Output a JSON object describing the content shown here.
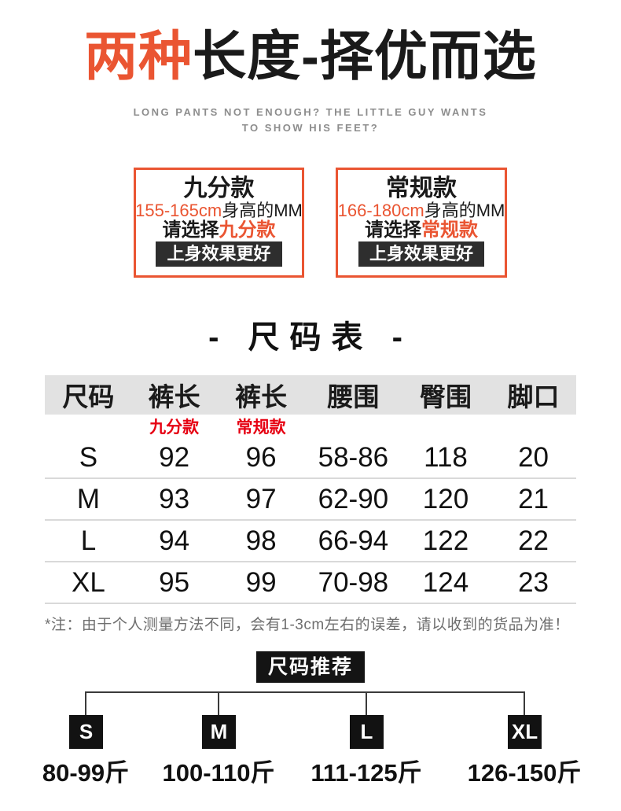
{
  "header": {
    "title_highlight": "两种",
    "title_rest": "长度-择优而选",
    "subtitle_line1": "LONG PANTS NOT ENOUGH? THE LITTLE GUY WANTS",
    "subtitle_line2": "TO SHOW HIS FEET?"
  },
  "option_cards": [
    {
      "name": "九分款",
      "height_range": "155-165cm",
      "height_suffix": "身高的MM",
      "choose_prefix": "请选择",
      "choose_highlight": "九分款",
      "button_label": "上身效果更好"
    },
    {
      "name": "常规款",
      "height_range": "166-180cm",
      "height_suffix": "身高的MM",
      "choose_prefix": "请选择",
      "choose_highlight": "常规款",
      "button_label": "上身效果更好"
    }
  ],
  "size_table": {
    "heading": "- 尺码表 -",
    "columns": [
      "尺码",
      "裤长",
      "裤长",
      "腰围",
      "臀围",
      "脚口"
    ],
    "sub_labels": {
      "crop": "九分款",
      "regular": "常规款"
    },
    "rows": [
      {
        "size": "S",
        "crop_length": "92",
        "regular_length": "96",
        "waist": "58-86",
        "hip": "118",
        "leg_opening": "20"
      },
      {
        "size": "M",
        "crop_length": "93",
        "regular_length": "97",
        "waist": "62-90",
        "hip": "120",
        "leg_opening": "21"
      },
      {
        "size": "L",
        "crop_length": "94",
        "regular_length": "98",
        "waist": "66-94",
        "hip": "122",
        "leg_opening": "22"
      },
      {
        "size": "XL",
        "crop_length": "95",
        "regular_length": "99",
        "waist": "70-98",
        "hip": "124",
        "leg_opening": "23"
      }
    ],
    "note": "*注：由于个人测量方法不同，会有1-3cm左右的误差，请以收到的货品为准！"
  },
  "recommendation": {
    "badge_label": "尺码推荐",
    "items": [
      {
        "size": "S",
        "weight_range": "80-99斤"
      },
      {
        "size": "M",
        "weight_range": "100-110斤"
      },
      {
        "size": "L",
        "weight_range": "111-125斤"
      },
      {
        "size": "XL",
        "weight_range": "126-150斤"
      }
    ]
  },
  "colors": {
    "accent_orange": "#ea5532",
    "table_red": "#e60012",
    "dark_button_bg": "#2e2e2e",
    "black_box_bg": "#141414",
    "table_header_bg": "#e2e2e2",
    "note_gray": "#6e6e6e",
    "subtitle_gray": "#8d8d8d"
  }
}
